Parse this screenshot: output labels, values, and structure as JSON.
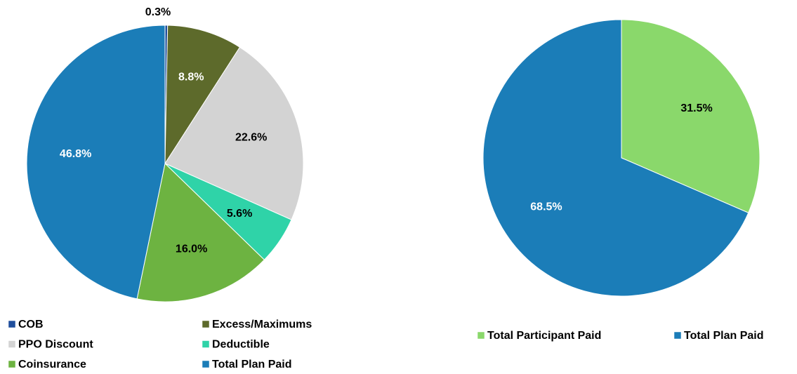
{
  "chart_data": [
    {
      "type": "pie",
      "categories": [
        "COB",
        "Excess/Maximums",
        "PPO Discount",
        "Deductible",
        "Coinsurance",
        "Total Plan Paid"
      ],
      "values": [
        0.3,
        8.8,
        22.6,
        5.6,
        16.0,
        46.8
      ],
      "value_labels": [
        "0.3%",
        "8.8%",
        "22.6%",
        "5.6%",
        "16.0%",
        "46.8%"
      ],
      "colors": [
        "#1f4e9c",
        "#5d6a2b",
        "#d3d3d3",
        "#2fd3a8",
        "#6db341",
        "#1b7db8"
      ],
      "label_colors": [
        "#000000",
        "#ffffff",
        "#000000",
        "#000000",
        "#000000",
        "#ffffff"
      ]
    },
    {
      "type": "pie",
      "categories": [
        "Total Participant Paid",
        "Total Plan Paid"
      ],
      "values": [
        31.5,
        68.5
      ],
      "value_labels": [
        "31.5%",
        "68.5%"
      ],
      "colors": [
        "#8ad86b",
        "#1b7db8"
      ],
      "label_colors": [
        "#000000",
        "#ffffff"
      ]
    }
  ]
}
